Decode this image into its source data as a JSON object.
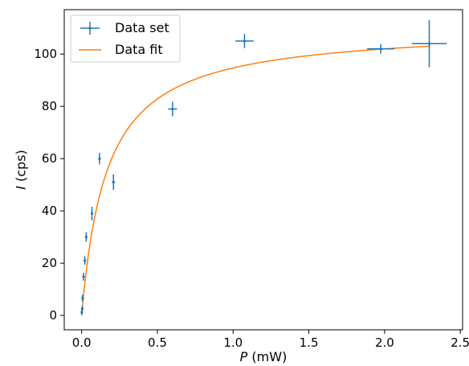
{
  "chart_data": {
    "type": "scatter",
    "xlabel": {
      "var": "P",
      "unit": " (mW)"
    },
    "ylabel": {
      "var": "I",
      "unit": " (cps)"
    },
    "xlim": [
      -0.115,
      2.515
    ],
    "ylim": [
      -5.5,
      117
    ],
    "x_ticks": [
      0.0,
      0.5,
      1.0,
      1.5,
      2.0,
      2.5
    ],
    "x_tick_labels": [
      "0.0",
      "0.5",
      "1.0",
      "1.5",
      "2.0",
      "2.5"
    ],
    "y_ticks": [
      0,
      20,
      40,
      60,
      80,
      100
    ],
    "y_tick_labels": [
      "0",
      "20",
      "40",
      "60",
      "80",
      "100"
    ],
    "grid": false,
    "legend_position": "top-left",
    "colors": {
      "data": "#1f77b4",
      "fit": "#ff7f0e",
      "axes": "#000000"
    },
    "series": [
      {
        "name": "Data set",
        "kind": "errorbar",
        "points": [
          {
            "x": 0.001,
            "y": 1.2,
            "xerr": 0.002,
            "yerr": 1.0
          },
          {
            "x": 0.004,
            "y": 2.5,
            "xerr": 0.002,
            "yerr": 1.2
          },
          {
            "x": 0.006,
            "y": 6.6,
            "xerr": 0.002,
            "yerr": 1.3
          },
          {
            "x": 0.012,
            "y": 14.8,
            "xerr": 0.003,
            "yerr": 1.5
          },
          {
            "x": 0.021,
            "y": 21.0,
            "xerr": 0.004,
            "yerr": 1.6
          },
          {
            "x": 0.03,
            "y": 30.0,
            "xerr": 0.005,
            "yerr": 1.8
          },
          {
            "x": 0.068,
            "y": 39.0,
            "xerr": 0.006,
            "yerr": 2.6
          },
          {
            "x": 0.118,
            "y": 60.0,
            "xerr": 0.008,
            "yerr": 2.2
          },
          {
            "x": 0.21,
            "y": 51.0,
            "xerr": 0.01,
            "yerr": 3.0
          },
          {
            "x": 0.6,
            "y": 79.0,
            "xerr": 0.03,
            "yerr": 2.8
          },
          {
            "x": 1.075,
            "y": 105.0,
            "xerr": 0.06,
            "yerr": 2.7
          },
          {
            "x": 1.975,
            "y": 102.0,
            "xerr": 0.09,
            "yerr": 1.8
          },
          {
            "x": 2.295,
            "y": 104.0,
            "xerr": 0.115,
            "yerr": 9.0
          }
        ]
      },
      {
        "name": "Data fit",
        "kind": "line",
        "model": {
          "form": "Imax*P/(P+Psat)",
          "Imax": 110.5,
          "Psat": 0.167
        },
        "x_range": [
          0.0,
          2.3
        ]
      }
    ]
  }
}
